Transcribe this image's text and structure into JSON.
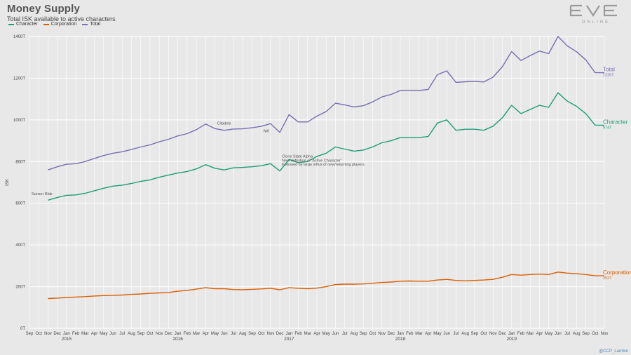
{
  "header": {
    "title": "Money Supply",
    "subtitle": "Total ISK available to active characters"
  },
  "logo": {
    "text": "EVE",
    "subtext": "ONLINE"
  },
  "credit": "@CCP_Larrikin",
  "colors": {
    "character": "#1b9e77",
    "corporation": "#d95f02",
    "total": "#7570b3",
    "background": "#e8e8e8",
    "grid": "#ffffff"
  },
  "chart_data": {
    "type": "line",
    "title": "Money Supply",
    "subtitle": "Total ISK available to active characters",
    "ylabel": "ISK",
    "xlabel": "",
    "ylim": [
      0,
      1400
    ],
    "y_ticks": [
      "0T",
      "200T",
      "400T",
      "600T",
      "800T",
      "1000T",
      "1200T",
      "1400T"
    ],
    "x_range": [
      "2014-09",
      "2019-11"
    ],
    "x_tick_labels": [
      "Sep",
      "Oct",
      "Nov",
      "Dec",
      "Jan",
      "Feb",
      "Mar",
      "Apr",
      "May",
      "Jun",
      "Jul",
      "Aug",
      "Sep",
      "Oct",
      "Nov",
      "Dec",
      "Jan",
      "Feb",
      "Mar",
      "Apr",
      "May",
      "Jun",
      "Jul",
      "Aug",
      "Sep",
      "Oct",
      "Nov",
      "Dec",
      "Jan",
      "Feb",
      "Mar",
      "Apr",
      "May",
      "Jun",
      "Jul",
      "Aug",
      "Sep",
      "Oct",
      "Nov",
      "Dec",
      "Jan",
      "Feb",
      "Mar",
      "Apr",
      "May",
      "Jun",
      "Jul",
      "Aug",
      "Sep",
      "Oct",
      "Nov",
      "Dec",
      "Jan",
      "Feb",
      "Mar",
      "Apr",
      "May",
      "Jun",
      "Jul",
      "Aug",
      "Sep",
      "Oct",
      "Nov"
    ],
    "year_labels": [
      {
        "label": "2015",
        "at": "2015-01"
      },
      {
        "label": "2016",
        "at": "2016-01"
      },
      {
        "label": "2017",
        "at": "2017-01"
      },
      {
        "label": "2018",
        "at": "2018-01"
      },
      {
        "label": "2019",
        "at": "2019-01"
      }
    ],
    "grid": true,
    "legend": "top-left",
    "series": [
      {
        "name": "Character",
        "color": "#1b9e77",
        "end_label": "Character",
        "end_value": "974T",
        "points": [
          [
            "2014-11",
            615
          ],
          [
            "2014-12",
            628
          ],
          [
            "2015-01",
            638
          ],
          [
            "2015-02",
            640
          ],
          [
            "2015-03",
            648
          ],
          [
            "2015-04",
            660
          ],
          [
            "2015-05",
            672
          ],
          [
            "2015-06",
            682
          ],
          [
            "2015-07",
            687
          ],
          [
            "2015-08",
            695
          ],
          [
            "2015-09",
            705
          ],
          [
            "2015-10",
            712
          ],
          [
            "2015-11",
            725
          ],
          [
            "2015-12",
            735
          ],
          [
            "2016-01",
            745
          ],
          [
            "2016-02",
            752
          ],
          [
            "2016-03",
            765
          ],
          [
            "2016-04",
            785
          ],
          [
            "2016-05",
            768
          ],
          [
            "2016-06",
            760
          ],
          [
            "2016-07",
            770
          ],
          [
            "2016-08",
            772
          ],
          [
            "2016-09",
            775
          ],
          [
            "2016-10",
            780
          ],
          [
            "2016-11",
            790
          ],
          [
            "2016-12",
            755
          ],
          [
            "2017-01",
            810
          ],
          [
            "2017-02",
            795
          ],
          [
            "2017-03",
            800
          ],
          [
            "2017-04",
            825
          ],
          [
            "2017-05",
            840
          ],
          [
            "2017-06",
            870
          ],
          [
            "2017-07",
            860
          ],
          [
            "2017-08",
            850
          ],
          [
            "2017-09",
            855
          ],
          [
            "2017-10",
            870
          ],
          [
            "2017-11",
            890
          ],
          [
            "2017-12",
            900
          ],
          [
            "2018-01",
            915
          ],
          [
            "2018-02",
            915
          ],
          [
            "2018-03",
            915
          ],
          [
            "2018-04",
            920
          ],
          [
            "2018-05",
            985
          ],
          [
            "2018-06",
            1000
          ],
          [
            "2018-07",
            950
          ],
          [
            "2018-08",
            955
          ],
          [
            "2018-09",
            955
          ],
          [
            "2018-10",
            950
          ],
          [
            "2018-11",
            970
          ],
          [
            "2018-12",
            1010
          ],
          [
            "2019-01",
            1070
          ],
          [
            "2019-02",
            1030
          ],
          [
            "2019-03",
            1050
          ],
          [
            "2019-04",
            1070
          ],
          [
            "2019-05",
            1060
          ],
          [
            "2019-06",
            1130
          ],
          [
            "2019-07",
            1090
          ],
          [
            "2019-08",
            1065
          ],
          [
            "2019-09",
            1030
          ],
          [
            "2019-10",
            975
          ],
          [
            "2019-11",
            974
          ]
        ]
      },
      {
        "name": "Corporation",
        "color": "#d95f02",
        "end_label": "Corporation",
        "end_value": "252T",
        "points": [
          [
            "2014-11",
            143
          ],
          [
            "2014-12",
            145
          ],
          [
            "2015-01",
            148
          ],
          [
            "2015-02",
            150
          ],
          [
            "2015-03",
            152
          ],
          [
            "2015-04",
            155
          ],
          [
            "2015-05",
            157
          ],
          [
            "2015-06",
            158
          ],
          [
            "2015-07",
            160
          ],
          [
            "2015-08",
            163
          ],
          [
            "2015-09",
            165
          ],
          [
            "2015-10",
            168
          ],
          [
            "2015-11",
            170
          ],
          [
            "2015-12",
            172
          ],
          [
            "2016-01",
            178
          ],
          [
            "2016-02",
            182
          ],
          [
            "2016-03",
            188
          ],
          [
            "2016-04",
            195
          ],
          [
            "2016-05",
            190
          ],
          [
            "2016-06",
            190
          ],
          [
            "2016-07",
            186
          ],
          [
            "2016-08",
            185
          ],
          [
            "2016-09",
            187
          ],
          [
            "2016-10",
            189
          ],
          [
            "2016-11",
            192
          ],
          [
            "2016-12",
            185
          ],
          [
            "2017-01",
            195
          ],
          [
            "2017-02",
            192
          ],
          [
            "2017-03",
            190
          ],
          [
            "2017-04",
            193
          ],
          [
            "2017-05",
            200
          ],
          [
            "2017-06",
            210
          ],
          [
            "2017-07",
            212
          ],
          [
            "2017-08",
            212
          ],
          [
            "2017-09",
            213
          ],
          [
            "2017-10",
            216
          ],
          [
            "2017-11",
            220
          ],
          [
            "2017-12",
            222
          ],
          [
            "2018-01",
            226
          ],
          [
            "2018-02",
            227
          ],
          [
            "2018-03",
            226
          ],
          [
            "2018-04",
            226
          ],
          [
            "2018-05",
            232
          ],
          [
            "2018-06",
            235
          ],
          [
            "2018-07",
            230
          ],
          [
            "2018-08",
            228
          ],
          [
            "2018-09",
            230
          ],
          [
            "2018-10",
            232
          ],
          [
            "2018-11",
            235
          ],
          [
            "2018-12",
            245
          ],
          [
            "2019-01",
            258
          ],
          [
            "2019-02",
            255
          ],
          [
            "2019-03",
            258
          ],
          [
            "2019-04",
            260
          ],
          [
            "2019-05",
            258
          ],
          [
            "2019-06",
            270
          ],
          [
            "2019-07",
            265
          ],
          [
            "2019-08",
            262
          ],
          [
            "2019-09",
            258
          ],
          [
            "2019-10",
            252
          ],
          [
            "2019-11",
            252
          ]
        ]
      },
      {
        "name": "Total",
        "color": "#7570b3",
        "end_label": "Total",
        "end_value": "1226T",
        "points": [
          [
            "2014-11",
            760
          ],
          [
            "2014-12",
            775
          ],
          [
            "2015-01",
            787
          ],
          [
            "2015-02",
            790
          ],
          [
            "2015-03",
            800
          ],
          [
            "2015-04",
            815
          ],
          [
            "2015-05",
            829
          ],
          [
            "2015-06",
            840
          ],
          [
            "2015-07",
            847
          ],
          [
            "2015-08",
            858
          ],
          [
            "2015-09",
            870
          ],
          [
            "2015-10",
            880
          ],
          [
            "2015-11",
            895
          ],
          [
            "2015-12",
            907
          ],
          [
            "2016-01",
            923
          ],
          [
            "2016-02",
            934
          ],
          [
            "2016-03",
            953
          ],
          [
            "2016-04",
            980
          ],
          [
            "2016-05",
            958
          ],
          [
            "2016-06",
            950
          ],
          [
            "2016-07",
            956
          ],
          [
            "2016-08",
            957
          ],
          [
            "2016-09",
            962
          ],
          [
            "2016-10",
            969
          ],
          [
            "2016-11",
            982
          ],
          [
            "2016-12",
            940
          ],
          [
            "2017-01",
            1025
          ],
          [
            "2017-02",
            990
          ],
          [
            "2017-03",
            990
          ],
          [
            "2017-04",
            1018
          ],
          [
            "2017-05",
            1040
          ],
          [
            "2017-06",
            1080
          ],
          [
            "2017-07",
            1072
          ],
          [
            "2017-08",
            1062
          ],
          [
            "2017-09",
            1068
          ],
          [
            "2017-10",
            1086
          ],
          [
            "2017-11",
            1110
          ],
          [
            "2017-12",
            1122
          ],
          [
            "2018-01",
            1141
          ],
          [
            "2018-02",
            1142
          ],
          [
            "2018-03",
            1141
          ],
          [
            "2018-04",
            1146
          ],
          [
            "2018-05",
            1217
          ],
          [
            "2018-06",
            1235
          ],
          [
            "2018-07",
            1180
          ],
          [
            "2018-08",
            1183
          ],
          [
            "2018-09",
            1185
          ],
          [
            "2018-10",
            1182
          ],
          [
            "2018-11",
            1205
          ],
          [
            "2018-12",
            1255
          ],
          [
            "2019-01",
            1328
          ],
          [
            "2019-02",
            1285
          ],
          [
            "2019-03",
            1308
          ],
          [
            "2019-04",
            1330
          ],
          [
            "2019-05",
            1318
          ],
          [
            "2019-06",
            1400
          ],
          [
            "2019-07",
            1355
          ],
          [
            "2019-08",
            1327
          ],
          [
            "2019-09",
            1288
          ],
          [
            "2019-10",
            1227
          ],
          [
            "2019-11",
            1226
          ]
        ]
      }
    ],
    "annotations": [
      {
        "text": "Sunser Blak",
        "at": "2014-09",
        "y": 640
      },
      {
        "text": "Citadels",
        "at": "2016-05",
        "y": 978
      },
      {
        "text": "IWI",
        "at": "2016-10",
        "y": 940
      },
      {
        "text": "Clone State Alpha",
        "at": "2016-12",
        "y": 820
      },
      {
        "text": "New definition of 'Active Character'",
        "at": "2016-12",
        "y": 800
      },
      {
        "text": "Followed by large influx of new/returning players",
        "at": "2016-12",
        "y": 780
      }
    ]
  }
}
